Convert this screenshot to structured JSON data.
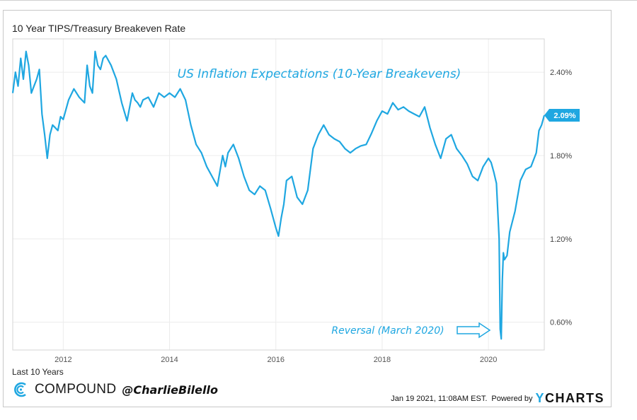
{
  "chart_data": {
    "type": "line",
    "title": "10 Year TIPS/Treasury Breakeven Rate",
    "annotation_title": "US Inflation Expectations (10-Year Breakevens)",
    "annotation_low": "Reversal (March 2020)",
    "period_label": "Last 10 Years",
    "x_ticks": [
      "2012",
      "2014",
      "2016",
      "2018",
      "2020"
    ],
    "x_tick_values": [
      2012,
      2014,
      2016,
      2018,
      2020
    ],
    "y_ticks": [
      "0.60%",
      "1.20%",
      "1.80%",
      "2.40%"
    ],
    "y_tick_values": [
      0.6,
      1.2,
      1.8,
      2.4
    ],
    "xlim": [
      2011.05,
      2021.05
    ],
    "ylim": [
      0.4,
      2.64
    ],
    "current_value_label": "2.09%",
    "line_color": "#1fa7e1",
    "series": [
      {
        "name": "10 Year TIPS/Treasury Breakeven Rate",
        "x": [
          2011.05,
          2011.1,
          2011.15,
          2011.2,
          2011.25,
          2011.3,
          2011.35,
          2011.4,
          2011.45,
          2011.5,
          2011.55,
          2011.6,
          2011.65,
          2011.7,
          2011.75,
          2011.8,
          2011.85,
          2011.9,
          2011.95,
          2012.0,
          2012.1,
          2012.2,
          2012.3,
          2012.4,
          2012.45,
          2012.5,
          2012.55,
          2012.6,
          2012.65,
          2012.7,
          2012.75,
          2012.8,
          2012.9,
          2013.0,
          2013.1,
          2013.2,
          2013.3,
          2013.35,
          2013.4,
          2013.45,
          2013.5,
          2013.6,
          2013.7,
          2013.8,
          2013.9,
          2014.0,
          2014.1,
          2014.2,
          2014.3,
          2014.4,
          2014.5,
          2014.55,
          2014.6,
          2014.7,
          2014.8,
          2014.9,
          2015.0,
          2015.05,
          2015.1,
          2015.2,
          2015.3,
          2015.4,
          2015.5,
          2015.6,
          2015.7,
          2015.8,
          2015.9,
          2016.0,
          2016.05,
          2016.1,
          2016.15,
          2016.2,
          2016.3,
          2016.4,
          2016.5,
          2016.6,
          2016.7,
          2016.8,
          2016.9,
          2017.0,
          2017.1,
          2017.2,
          2017.3,
          2017.4,
          2017.5,
          2017.6,
          2017.7,
          2017.8,
          2017.9,
          2018.0,
          2018.1,
          2018.2,
          2018.3,
          2018.4,
          2018.5,
          2018.6,
          2018.7,
          2018.8,
          2018.9,
          2019.0,
          2019.1,
          2019.2,
          2019.3,
          2019.4,
          2019.5,
          2019.6,
          2019.7,
          2019.8,
          2019.9,
          2020.0,
          2020.05,
          2020.1,
          2020.15,
          2020.2,
          2020.22,
          2020.24,
          2020.26,
          2020.28,
          2020.3,
          2020.35,
          2020.4,
          2020.5,
          2020.6,
          2020.7,
          2020.8,
          2020.9,
          2020.95,
          2021.0,
          2021.05
        ],
        "values": [
          2.25,
          2.4,
          2.3,
          2.5,
          2.35,
          2.55,
          2.45,
          2.25,
          2.3,
          2.35,
          2.42,
          2.1,
          1.95,
          1.78,
          1.95,
          2.02,
          2.0,
          1.98,
          2.08,
          2.06,
          2.2,
          2.28,
          2.22,
          2.18,
          2.45,
          2.3,
          2.25,
          2.55,
          2.45,
          2.42,
          2.5,
          2.52,
          2.45,
          2.35,
          2.18,
          2.05,
          2.25,
          2.2,
          2.18,
          2.15,
          2.2,
          2.22,
          2.15,
          2.25,
          2.22,
          2.25,
          2.22,
          2.28,
          2.2,
          2.02,
          1.88,
          1.85,
          1.82,
          1.72,
          1.65,
          1.58,
          1.8,
          1.72,
          1.82,
          1.88,
          1.78,
          1.65,
          1.55,
          1.52,
          1.58,
          1.55,
          1.42,
          1.28,
          1.22,
          1.35,
          1.45,
          1.62,
          1.65,
          1.5,
          1.45,
          1.55,
          1.85,
          1.95,
          2.02,
          1.95,
          1.92,
          1.9,
          1.85,
          1.82,
          1.85,
          1.87,
          1.88,
          1.96,
          2.05,
          2.12,
          2.1,
          2.18,
          2.13,
          2.15,
          2.12,
          2.1,
          2.08,
          2.15,
          2.0,
          1.88,
          1.78,
          1.92,
          1.95,
          1.85,
          1.8,
          1.74,
          1.65,
          1.62,
          1.72,
          1.78,
          1.75,
          1.68,
          1.6,
          1.2,
          0.55,
          0.48,
          0.9,
          1.1,
          1.05,
          1.08,
          1.25,
          1.4,
          1.62,
          1.7,
          1.72,
          1.82,
          1.98,
          2.02,
          2.09
        ]
      }
    ]
  }
}
